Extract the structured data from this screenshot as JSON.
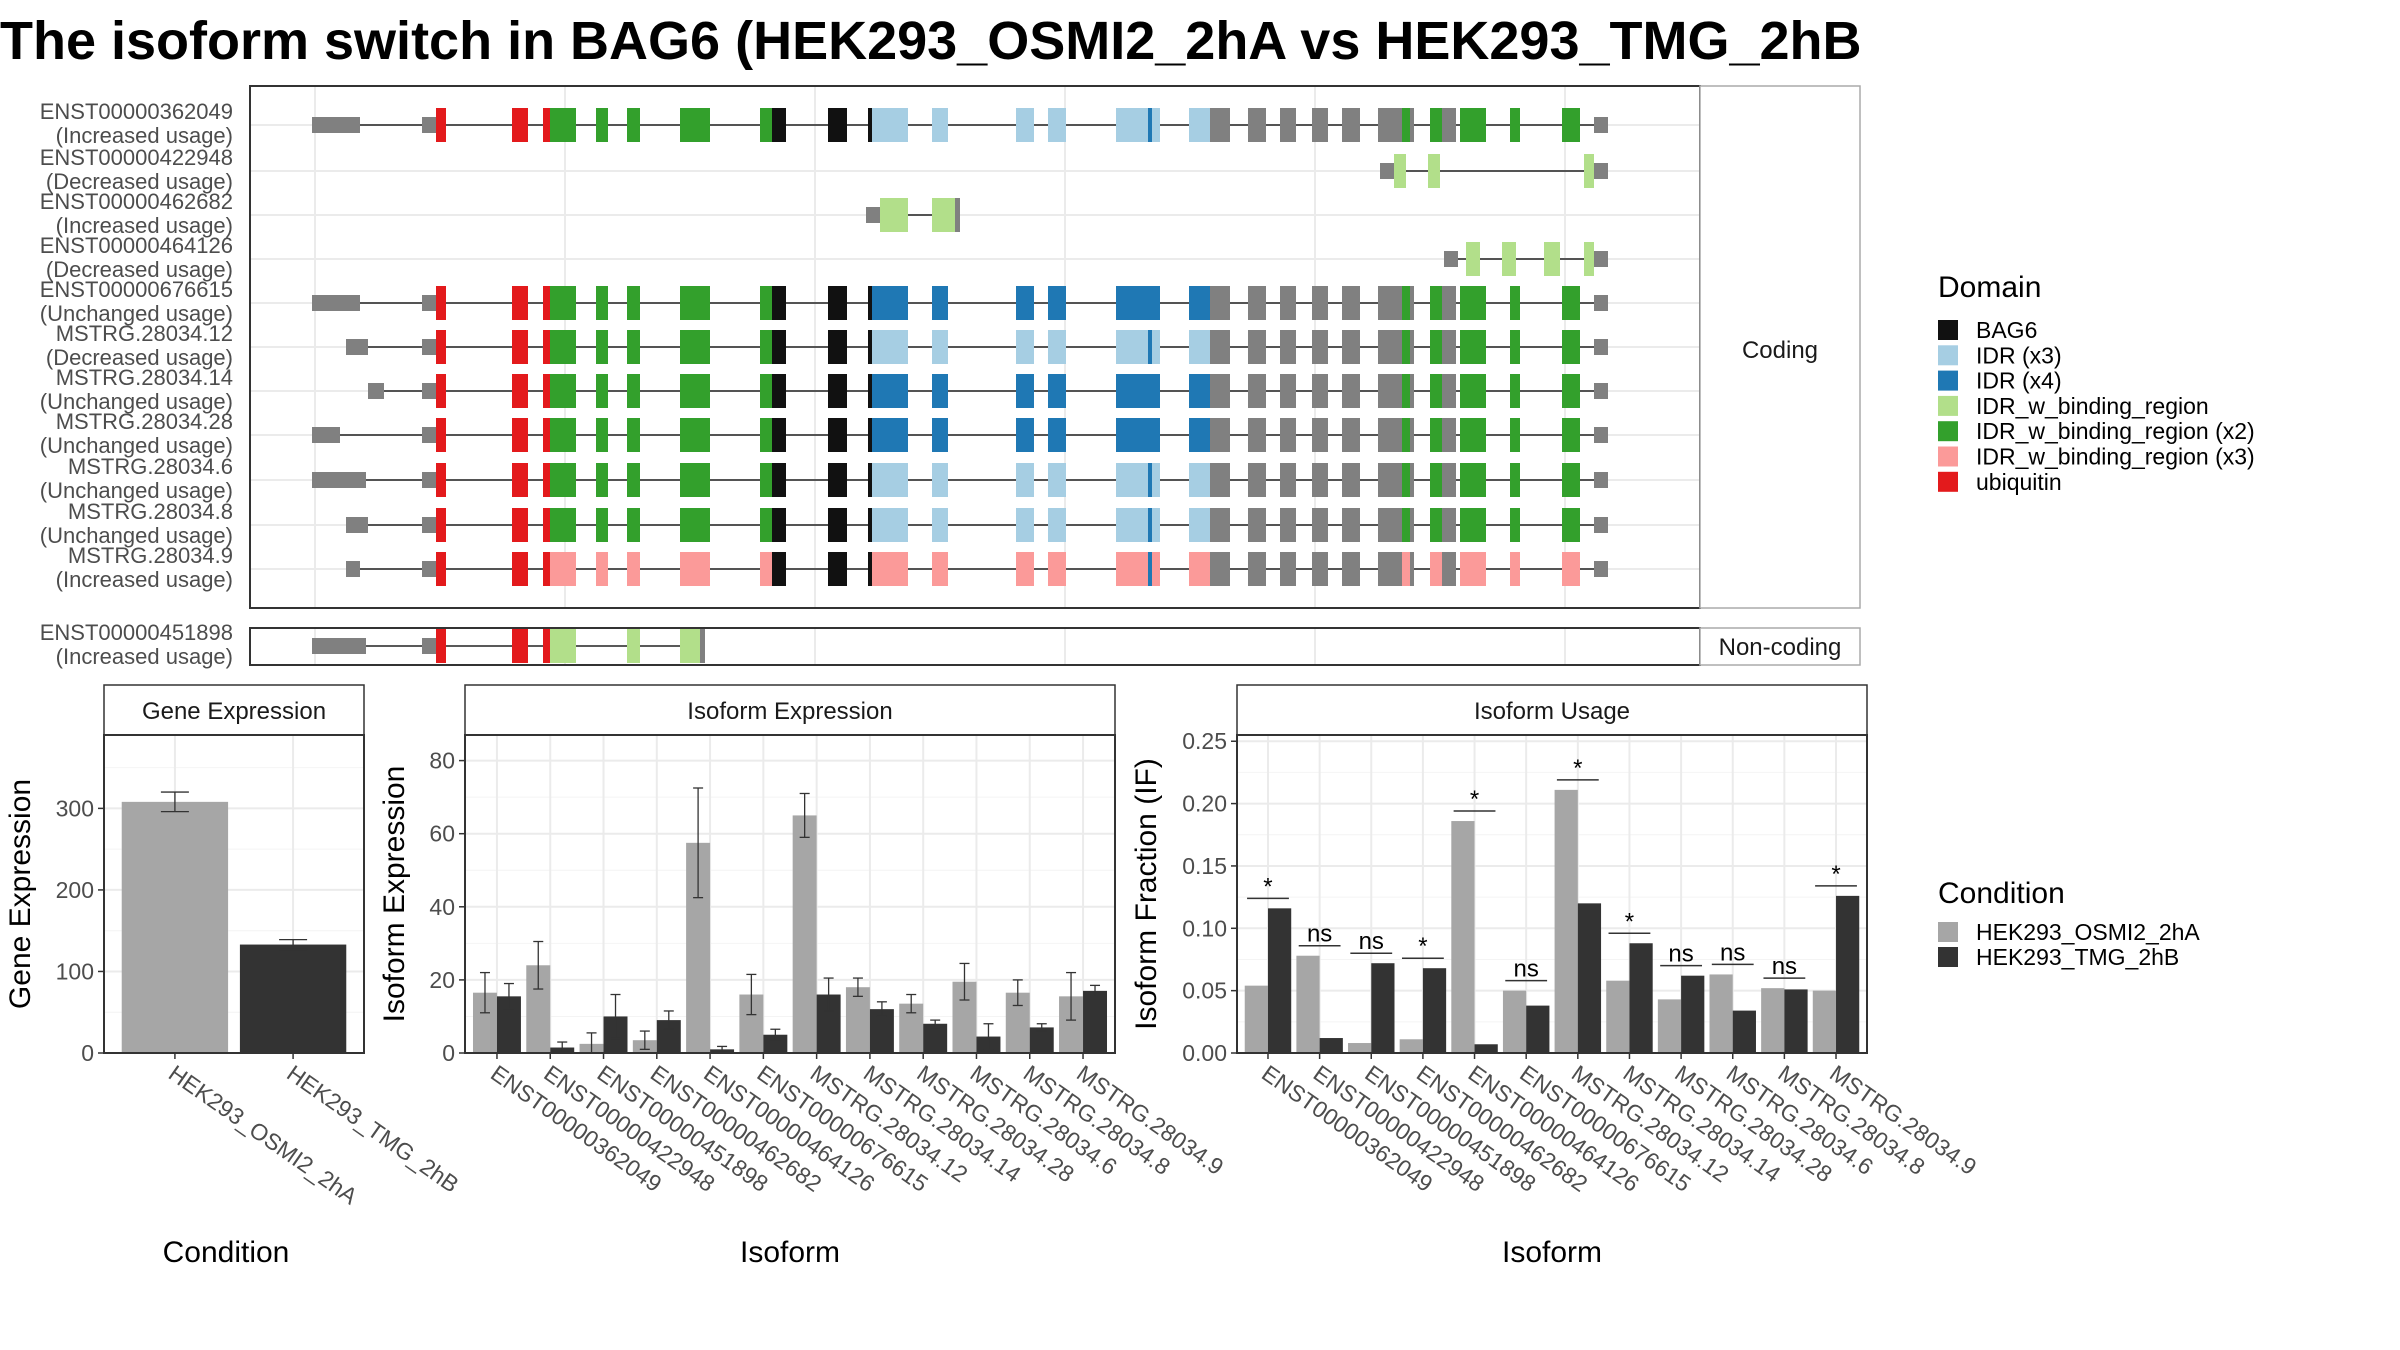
{
  "title": "The isoform switch in BAG6 (HEK293_OSMI2_2hA vs HEK293_TMG_2hB",
  "colors": {
    "BAG6": "#111111",
    "IDR (x3)": "#a6cee3",
    "IDR (x4)": "#1f78b4",
    "IDR_w_binding_region": "#b2df8a",
    "IDR_w_binding_region (x2)": "#33a02c",
    "IDR_w_binding_region (x3)": "#fb9a99",
    "ubiquitin": "#e31a1c",
    "utr": "#808080",
    "cond1": "#a6a6a6",
    "cond2": "#333333"
  },
  "chart_data": [
    {
      "type": "table",
      "panel": "transcript-structures",
      "facets": [
        "Coding",
        "Non-coding"
      ],
      "transcripts": [
        {
          "id": "ENST00000362049",
          "status": "(Increased usage)",
          "coding": true,
          "pattern": "A"
        },
        {
          "id": "ENST00000422948",
          "status": "(Decreased usage)",
          "coding": true,
          "pattern": "B"
        },
        {
          "id": "ENST00000462682",
          "status": "(Increased usage)",
          "coding": true,
          "pattern": "C"
        },
        {
          "id": "ENST00000464126",
          "status": "(Decreased usage)",
          "coding": true,
          "pattern": "D"
        },
        {
          "id": "ENST00000676615",
          "status": "(Unchanged usage)",
          "coding": true,
          "pattern": "E"
        },
        {
          "id": "MSTRG.28034.12",
          "status": "(Decreased usage)",
          "coding": true,
          "pattern": "F"
        },
        {
          "id": "MSTRG.28034.14",
          "status": "(Unchanged usage)",
          "coding": true,
          "pattern": "G"
        },
        {
          "id": "MSTRG.28034.28",
          "status": "(Unchanged usage)",
          "coding": true,
          "pattern": "H"
        },
        {
          "id": "MSTRG.28034.6",
          "status": "(Unchanged usage)",
          "coding": true,
          "pattern": "I"
        },
        {
          "id": "MSTRG.28034.8",
          "status": "(Unchanged usage)",
          "coding": true,
          "pattern": "J"
        },
        {
          "id": "MSTRG.28034.9",
          "status": "(Increased usage)",
          "coding": true,
          "pattern": "K"
        },
        {
          "id": "ENST00000451898",
          "status": "(Increased usage)",
          "coding": false,
          "pattern": "L"
        }
      ],
      "legend": {
        "title": "Domain",
        "entries": [
          "BAG6",
          "IDR (x3)",
          "IDR (x4)",
          "IDR_w_binding_region",
          "IDR_w_binding_region (x2)",
          "IDR_w_binding_region (x3)",
          "ubiquitin"
        ]
      }
    },
    {
      "type": "bar",
      "panel": "Gene Expression",
      "facet_label": "Gene Expression",
      "categories": [
        "HEK293_OSMI2_2hA",
        "HEK293_TMG_2hB"
      ],
      "values": [
        308,
        133
      ],
      "errors": [
        12,
        6
      ],
      "xlabel": "Condition",
      "ylabel": "Gene Expression",
      "ylim": [
        0,
        390
      ],
      "yticks": [
        0,
        100,
        200,
        300
      ]
    },
    {
      "type": "bar",
      "panel": "Isoform Expression",
      "facet_label": "Isoform Expression",
      "categories": [
        "ENST00000362049",
        "ENST00000422948",
        "ENST00000451898",
        "ENST00000462682",
        "ENST00000464126",
        "ENST00000676615",
        "MSTRG.28034.12",
        "MSTRG.28034.14",
        "MSTRG.28034.28",
        "MSTRG.28034.6",
        "MSTRG.28034.8",
        "MSTRG.28034.9"
      ],
      "series": [
        {
          "name": "HEK293_OSMI2_2hA",
          "values": [
            16.5,
            24,
            2.5,
            3.5,
            57.5,
            16,
            65,
            18,
            13.5,
            19.5,
            16.5,
            15.5
          ],
          "errors": [
            5.5,
            6.5,
            3,
            2.5,
            15,
            5.5,
            6,
            2.5,
            2.5,
            5,
            3.5,
            6.5
          ]
        },
        {
          "name": "HEK293_TMG_2hB",
          "values": [
            15.5,
            1.5,
            10,
            9,
            1,
            5,
            16,
            12,
            8,
            4.5,
            7,
            17
          ],
          "errors": [
            3.5,
            1.5,
            6,
            2.5,
            0.8,
            1.5,
            4.5,
            2,
            1,
            3.5,
            1,
            1.5
          ]
        }
      ],
      "xlabel": "Isoform",
      "ylabel": "Isoform Expression",
      "ylim": [
        0,
        87
      ],
      "yticks": [
        0,
        20,
        40,
        60,
        80
      ]
    },
    {
      "type": "bar",
      "panel": "Isoform Usage",
      "facet_label": "Isoform Usage",
      "categories": [
        "ENST00000362049",
        "ENST00000422948",
        "ENST00000451898",
        "ENST00000462682",
        "ENST00000464126",
        "ENST00000676615",
        "MSTRG.28034.12",
        "MSTRG.28034.14",
        "MSTRG.28034.28",
        "MSTRG.28034.6",
        "MSTRG.28034.8",
        "MSTRG.28034.9"
      ],
      "series": [
        {
          "name": "HEK293_OSMI2_2hA",
          "values": [
            0.054,
            0.078,
            0.008,
            0.011,
            0.186,
            0.05,
            0.211,
            0.058,
            0.043,
            0.063,
            0.052,
            0.05
          ]
        },
        {
          "name": "HEK293_TMG_2hB",
          "values": [
            0.116,
            0.012,
            0.072,
            0.068,
            0.007,
            0.038,
            0.12,
            0.088,
            0.062,
            0.034,
            0.051,
            0.126
          ]
        }
      ],
      "significance": [
        "*",
        "ns",
        "ns",
        "*",
        "*",
        "ns",
        "*",
        "*",
        "ns",
        "ns",
        "ns",
        "*"
      ],
      "xlabel": "Isoform",
      "ylabel": "Isoform Fraction (IF)",
      "ylim": [
        0,
        0.255
      ],
      "yticks": [
        "0.00",
        "0.05",
        "0.10",
        "0.15",
        "0.20",
        "0.25"
      ]
    }
  ],
  "condition_legend": {
    "title": "Condition",
    "entries": [
      "HEK293_OSMI2_2hA",
      "HEK293_TMG_2hB"
    ]
  }
}
